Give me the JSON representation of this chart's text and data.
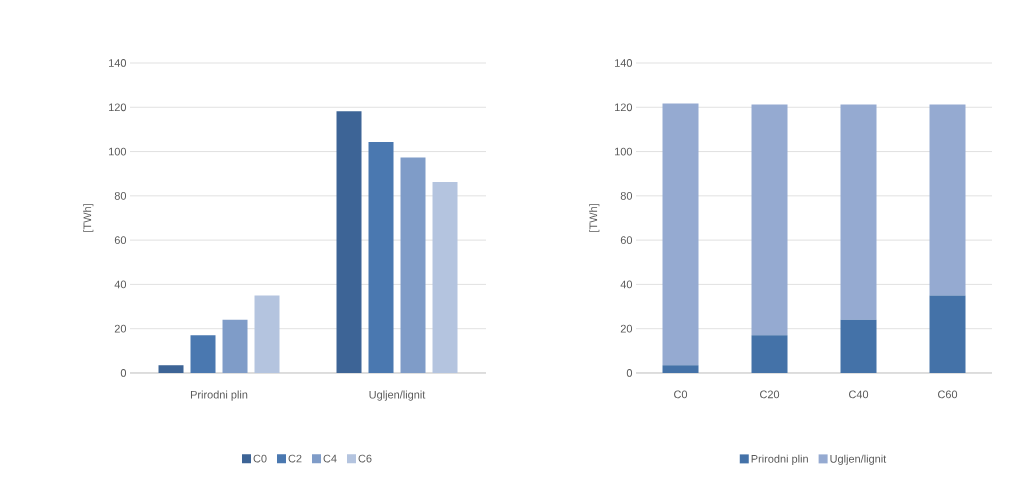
{
  "chart_data": [
    {
      "type": "bar",
      "categories": [
        "Prirodni plin",
        "Ugljen/lignit"
      ],
      "ylabel": "[TWh]",
      "ylim": [
        0,
        140
      ],
      "yticks": [
        0,
        20,
        40,
        60,
        80,
        100,
        120,
        140
      ],
      "grid": "y",
      "legend": "bottom",
      "series": [
        {
          "name": "C0",
          "color": "#3d6496",
          "values": [
            3.5,
            118.2
          ]
        },
        {
          "name": "C2",
          "color": "#4a78b0",
          "values": [
            17,
            104.3
          ]
        },
        {
          "name": "C4",
          "color": "#7f9cc8",
          "values": [
            24,
            97.3
          ]
        },
        {
          "name": "C6",
          "color": "#b4c4df",
          "values": [
            35,
            86.3
          ]
        }
      ]
    },
    {
      "type": "bar",
      "stacked": true,
      "categories": [
        "C0",
        "C20",
        "C40",
        "C60"
      ],
      "ylabel": "[TWh]",
      "ylim": [
        0,
        140
      ],
      "yticks": [
        0,
        20,
        40,
        60,
        80,
        100,
        120,
        140
      ],
      "grid": "y",
      "legend": "bottom",
      "series": [
        {
          "name": "Prirodni plin",
          "color": "#4472a8",
          "values": [
            3.5,
            17,
            24,
            35
          ]
        },
        {
          "name": "Ugljen/lignit",
          "color": "#95aad1",
          "values": [
            118.2,
            104.3,
            97.3,
            86.3
          ]
        }
      ]
    }
  ]
}
